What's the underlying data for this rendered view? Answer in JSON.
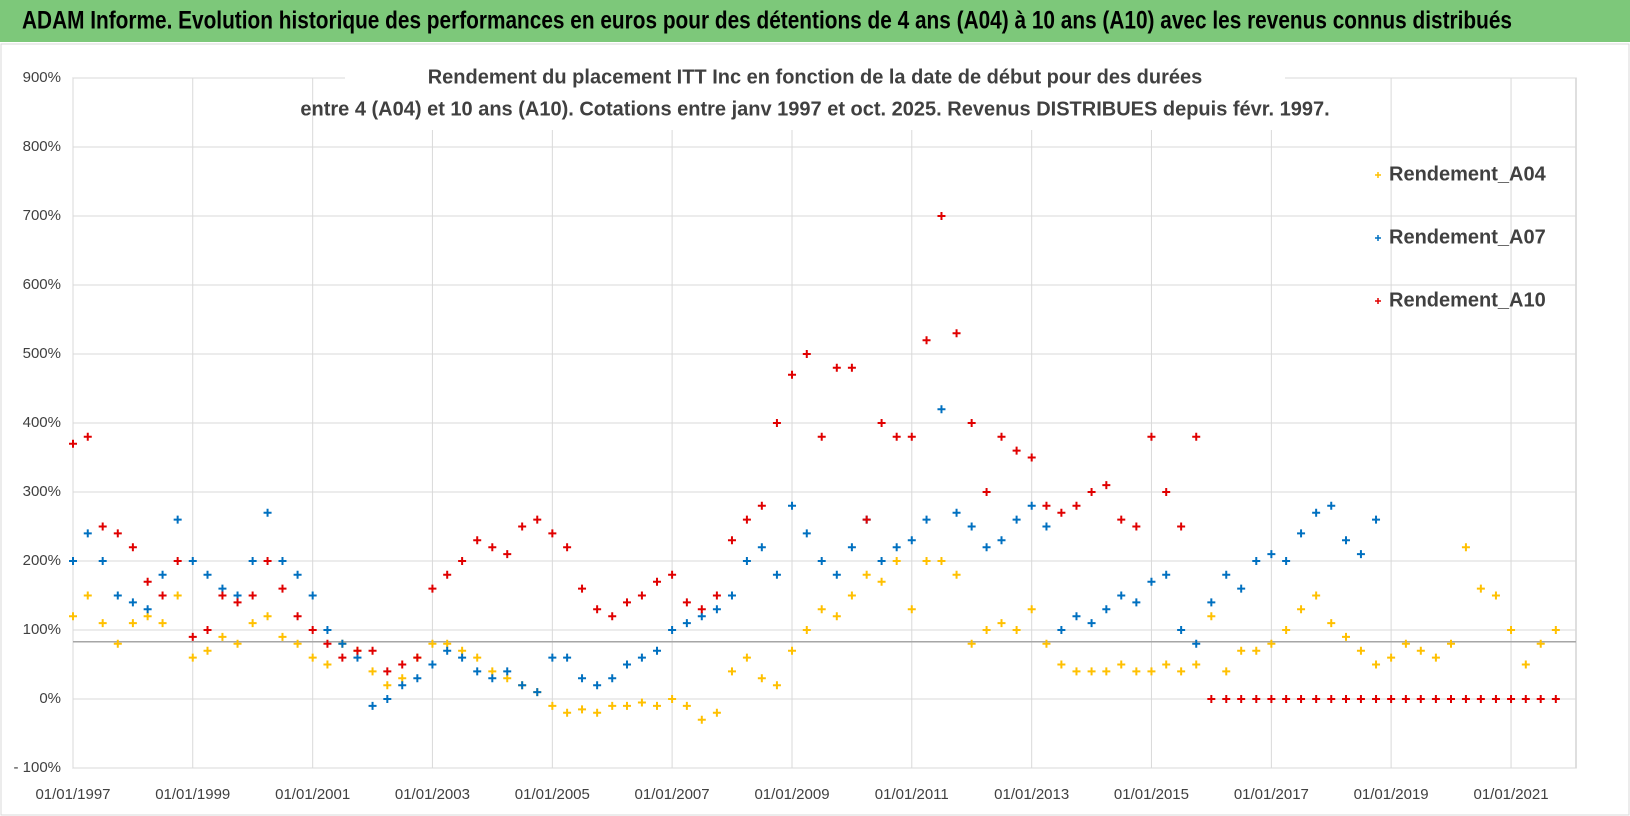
{
  "header": {
    "title": "ADAM Informe. Evolution historique des performances en euros pour des détentions de 4 ans (A04) à 10 ans (A10) avec les revenus connus distribués"
  },
  "chart_data": {
    "type": "scatter",
    "title_lines": [
      "Rendement du placement ITT Inc en fonction de la date de début pour des durées",
      "entre 4 (A04) et 10 ans (A10). Cotations entre janv 1997 et oct. 2025.  Revenus DISTRIBUES depuis févr. 1997."
    ],
    "x": [
      "1997-01-01",
      "1997-04-01",
      "1997-07-01",
      "1997-10-01",
      "1998-01-01",
      "1998-04-01",
      "1998-07-01",
      "1998-10-01",
      "1999-01-01",
      "1999-04-01",
      "1999-07-01",
      "1999-10-01",
      "2000-01-01",
      "2000-04-01",
      "2000-07-01",
      "2000-10-01",
      "2001-01-01",
      "2001-04-01",
      "2001-07-01",
      "2001-10-01",
      "2002-01-01",
      "2002-04-01",
      "2002-07-01",
      "2002-10-01",
      "2003-01-01",
      "2003-04-01",
      "2003-07-01",
      "2003-10-01",
      "2004-01-01",
      "2004-04-01",
      "2004-07-01",
      "2004-10-01",
      "2005-01-01",
      "2005-04-01",
      "2005-07-01",
      "2005-10-01",
      "2006-01-01",
      "2006-04-01",
      "2006-07-01",
      "2006-10-01",
      "2007-01-01",
      "2007-04-01",
      "2007-07-01",
      "2007-10-01",
      "2008-01-01",
      "2008-04-01",
      "2008-07-01",
      "2008-10-01",
      "2009-01-01",
      "2009-04-01",
      "2009-07-01",
      "2009-10-01",
      "2010-01-01",
      "2010-04-01",
      "2010-07-01",
      "2010-10-01",
      "2011-01-01",
      "2011-04-01",
      "2011-07-01",
      "2011-10-01",
      "2012-01-01",
      "2012-04-01",
      "2012-07-01",
      "2012-10-01",
      "2013-01-01",
      "2013-04-01",
      "2013-07-01",
      "2013-10-01",
      "2014-01-01",
      "2014-04-01",
      "2014-07-01",
      "2014-10-01",
      "2015-01-01",
      "2015-04-01",
      "2015-07-01",
      "2015-10-01",
      "2016-01-01",
      "2016-04-01",
      "2016-07-01",
      "2016-10-01",
      "2017-01-01",
      "2017-04-01",
      "2017-07-01",
      "2017-10-01",
      "2018-01-01",
      "2018-04-01",
      "2018-07-01",
      "2018-10-01",
      "2019-01-01",
      "2019-04-01",
      "2019-07-01",
      "2019-10-01",
      "2020-01-01",
      "2020-04-01",
      "2020-07-01",
      "2020-10-01",
      "2021-01-01",
      "2021-04-01",
      "2021-07-01",
      "2021-10-01"
    ],
    "series": [
      {
        "name": "Rendement_A04",
        "color": "#ffc000",
        "values": [
          120,
          150,
          110,
          80,
          110,
          120,
          110,
          150,
          60,
          70,
          90,
          80,
          110,
          120,
          90,
          80,
          60,
          50,
          80,
          70,
          40,
          20,
          30,
          60,
          80,
          80,
          70,
          60,
          40,
          30,
          20,
          10,
          -10,
          -20,
          -15,
          -20,
          -10,
          -10,
          -5,
          -10,
          0,
          -10,
          -30,
          -20,
          40,
          60,
          30,
          20,
          70,
          100,
          130,
          120,
          150,
          180,
          170,
          200,
          130,
          200,
          200,
          180,
          80,
          100,
          110,
          100,
          130,
          80,
          50,
          40,
          40,
          40,
          50,
          40,
          40,
          50,
          40,
          50,
          120,
          40,
          70,
          70,
          80,
          100,
          130,
          150,
          110,
          90,
          70,
          50,
          60,
          80,
          70,
          60,
          80,
          220,
          160,
          150,
          100,
          50,
          80,
          100
        ]
      },
      {
        "name": "Rendement_A07",
        "color": "#0070c0",
        "values": [
          200,
          240,
          200,
          150,
          140,
          130,
          180,
          260,
          200,
          180,
          160,
          150,
          200,
          270,
          200,
          180,
          150,
          100,
          80,
          60,
          -10,
          0,
          20,
          30,
          50,
          70,
          60,
          40,
          30,
          40,
          20,
          10,
          60,
          60,
          30,
          20,
          30,
          50,
          60,
          70,
          100,
          110,
          120,
          130,
          150,
          200,
          220,
          180,
          280,
          240,
          200,
          180,
          220,
          260,
          200,
          220,
          230,
          260,
          420,
          270,
          250,
          220,
          230,
          260,
          280,
          250,
          100,
          120,
          110,
          130,
          150,
          140,
          170,
          180,
          100,
          80,
          140,
          180,
          160,
          200,
          210,
          200,
          240,
          270,
          280,
          230,
          210,
          260,
          null,
          null,
          null,
          null,
          null,
          null,
          null,
          null,
          null,
          null,
          null,
          null
        ]
      },
      {
        "name": "Rendement_A10",
        "color": "#e00000",
        "values": [
          370,
          380,
          250,
          240,
          220,
          170,
          150,
          200,
          90,
          100,
          150,
          140,
          150,
          200,
          160,
          120,
          100,
          80,
          60,
          70,
          70,
          40,
          50,
          60,
          160,
          180,
          200,
          230,
          220,
          210,
          250,
          260,
          240,
          220,
          160,
          130,
          120,
          140,
          150,
          170,
          180,
          140,
          130,
          150,
          230,
          260,
          280,
          400,
          470,
          500,
          380,
          480,
          480,
          260,
          400,
          380,
          380,
          520,
          700,
          530,
          400,
          300,
          380,
          360,
          350,
          280,
          270,
          280,
          300,
          310,
          260,
          250,
          380,
          300,
          250,
          380,
          0,
          0,
          0,
          0,
          0,
          0,
          0,
          0,
          0,
          0,
          0,
          0,
          0,
          0,
          0,
          0,
          0,
          0,
          0,
          0,
          0,
          0,
          0,
          0
        ]
      }
    ],
    "reference_line": 83,
    "xlim": [
      "1997-01-01",
      "2022-02-01"
    ],
    "xticks": [
      {
        "value": "1997-01-01",
        "label": "01/01/1997"
      },
      {
        "value": "1999-01-01",
        "label": "01/01/1999"
      },
      {
        "value": "2001-01-01",
        "label": "01/01/2001"
      },
      {
        "value": "2003-01-01",
        "label": "01/01/2003"
      },
      {
        "value": "2005-01-01",
        "label": "01/01/2005"
      },
      {
        "value": "2007-01-01",
        "label": "01/01/2007"
      },
      {
        "value": "2009-01-01",
        "label": "01/01/2009"
      },
      {
        "value": "2011-01-01",
        "label": "01/01/2011"
      },
      {
        "value": "2013-01-01",
        "label": "01/01/2013"
      },
      {
        "value": "2015-01-01",
        "label": "01/01/2015"
      },
      {
        "value": "2017-01-01",
        "label": "01/01/2017"
      },
      {
        "value": "2019-01-01",
        "label": "01/01/2019"
      },
      {
        "value": "2021-01-01",
        "label": "01/01/2021"
      }
    ],
    "ylim": [
      -100,
      900
    ],
    "yticks": [
      {
        "value": -100,
        "label": "- 100%"
      },
      {
        "value": 0,
        "label": "0%"
      },
      {
        "value": 100,
        "label": "100%"
      },
      {
        "value": 200,
        "label": "200%"
      },
      {
        "value": 300,
        "label": "300%"
      },
      {
        "value": 400,
        "label": "400%"
      },
      {
        "value": 500,
        "label": "500%"
      },
      {
        "value": 600,
        "label": "600%"
      },
      {
        "value": 700,
        "label": "700%"
      },
      {
        "value": 800,
        "label": "800%"
      },
      {
        "value": 900,
        "label": "900%"
      }
    ],
    "grid": true
  }
}
